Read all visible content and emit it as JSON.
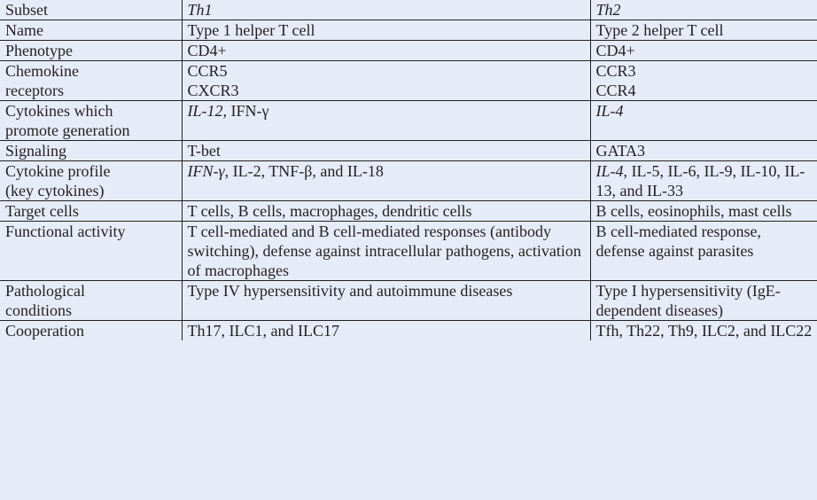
{
  "table": {
    "header": {
      "label": "Subset",
      "col1": "Th1",
      "col2": "Th2"
    },
    "rows": [
      {
        "label": "Name",
        "th1": "Type 1 helper T cell",
        "th2": "Type 2 helper T cell"
      },
      {
        "label": "Phenotype",
        "th1": "CD4+",
        "th2": "CD4+"
      },
      {
        "label_lines": [
          "Chemokine",
          "receptors"
        ],
        "th1_lines": [
          "CCR5",
          "CXCR3"
        ],
        "th2_lines": [
          "CCR3",
          "CCR4"
        ]
      },
      {
        "label_lines": [
          "Cytokines which",
          "promote generation"
        ],
        "th1_italic": "IL-12",
        "th1_rest": ", IFN-γ",
        "th2_italic": "IL-4"
      },
      {
        "label": "Signaling",
        "th1": "T-bet",
        "th2": "GATA3"
      },
      {
        "label_lines": [
          "Cytokine profile",
          "(key cytokines)"
        ],
        "th1_italic": "IFN-γ",
        "th1_rest": ", IL-2, TNF-β, and IL-18",
        "th2_italic": "IL-4",
        "th2_rest": ", IL-5, IL-6, IL-9, IL-10, IL-13, and IL-33"
      },
      {
        "label": "Target cells",
        "th1": "T cells, B cells, macrophages, dendritic cells",
        "th2": "B cells, eosinophils, mast cells"
      },
      {
        "label": "Functional activity",
        "th1": "T cell-mediated and B cell-mediated responses (antibody switching), defense against intracellular pathogens, activation of macrophages",
        "th2": "B cell-mediated response, defense against parasites"
      },
      {
        "label_lines": [
          "Pathological",
          "conditions"
        ],
        "th1": "Type IV hypersensitivity and autoimmune diseases",
        "th2": "Type I hypersensitivity (IgE-dependent diseases)"
      },
      {
        "label": "Cooperation",
        "th1": "Th17, ILC1, and ILC17",
        "th2": "Tfh, Th22, Th9, ILC2, and ILC22"
      }
    ]
  },
  "colors": {
    "background": "#e6ecf7",
    "rule": "#231f20",
    "text": "#231f20"
  }
}
